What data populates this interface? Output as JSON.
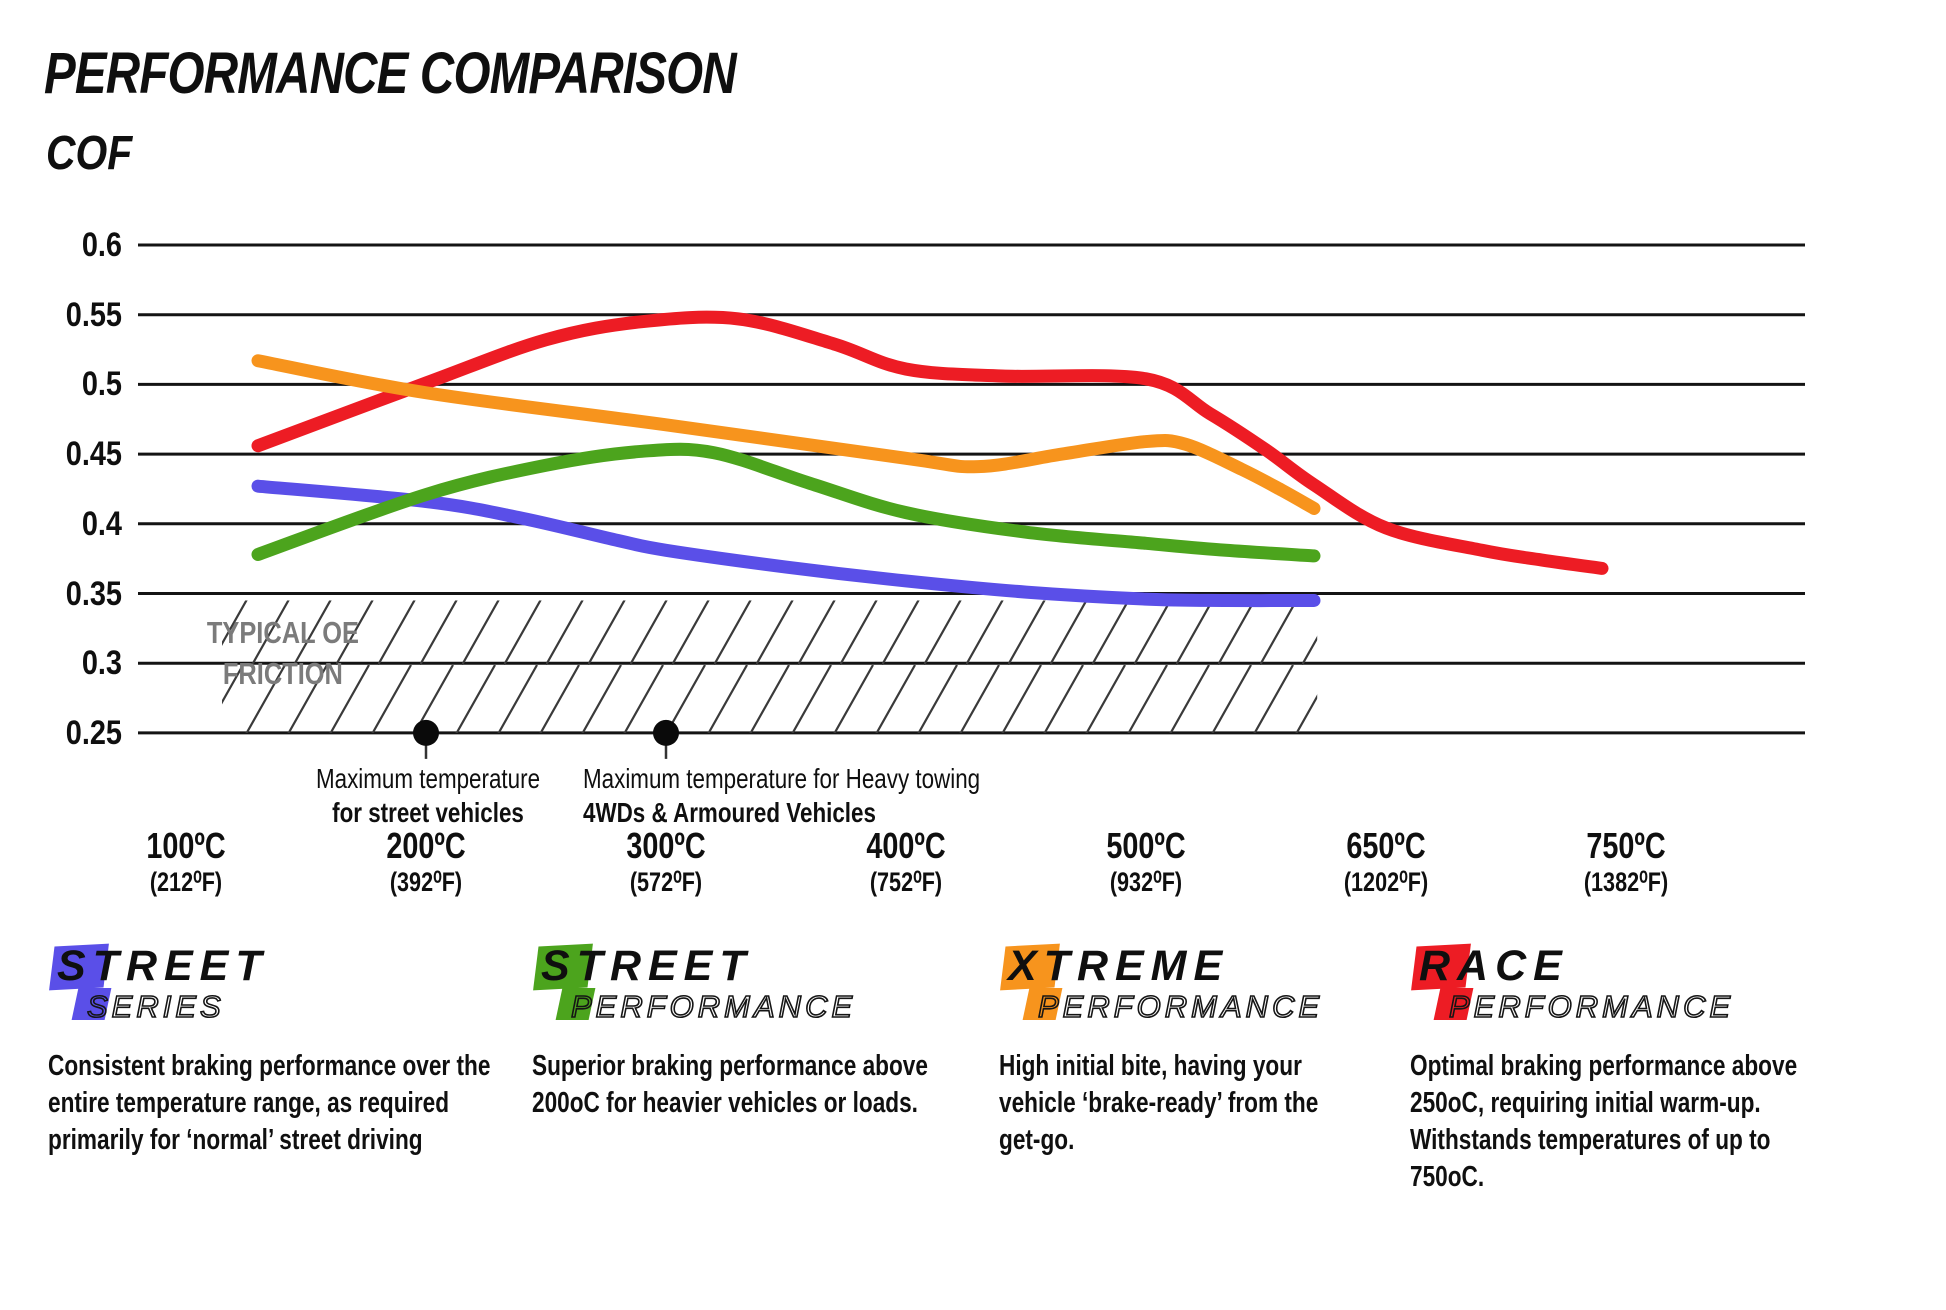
{
  "header": {
    "title": "PERFORMANCE COMPARISON",
    "y_axis_title": "COF"
  },
  "chart_data": {
    "type": "line",
    "title": "PERFORMANCE COMPARISON",
    "ylabel": "COF",
    "ylim": [
      0.25,
      0.6
    ],
    "grid": "horizontal gridlines only",
    "legend_position": "bottom",
    "y_ticks": [
      0.6,
      0.55,
      0.5,
      0.45,
      0.4,
      0.35,
      0.3,
      0.25
    ],
    "x_ticks": [
      {
        "temp": 100,
        "label_c": "100ºC",
        "label_f": "(212⁰F)"
      },
      {
        "temp": 200,
        "label_c": "200ºC",
        "label_f": "(392⁰F)"
      },
      {
        "temp": 300,
        "label_c": "300ºC",
        "label_f": "(572⁰F)"
      },
      {
        "temp": 400,
        "label_c": "400ºC",
        "label_f": "(752⁰F)"
      },
      {
        "temp": 500,
        "label_c": "500ºC",
        "label_f": "(932⁰F)"
      },
      {
        "temp": 650,
        "label_c": "650ºC",
        "label_f": "(1202⁰F)"
      },
      {
        "temp": 750,
        "label_c": "750ºC",
        "label_f": "(1382⁰F)"
      }
    ],
    "series": [
      {
        "name": "Street Series",
        "color": "#5a4fe8",
        "points": [
          [
            130,
            0.427
          ],
          [
            200,
            0.416
          ],
          [
            240,
            0.404
          ],
          [
            280,
            0.388
          ],
          [
            300,
            0.381
          ],
          [
            350,
            0.369
          ],
          [
            400,
            0.359
          ],
          [
            450,
            0.351
          ],
          [
            500,
            0.346
          ],
          [
            550,
            0.345
          ],
          [
            605,
            0.345
          ]
        ]
      },
      {
        "name": "Street Performance",
        "color": "#4ca41d",
        "points": [
          [
            130,
            0.378
          ],
          [
            200,
            0.421
          ],
          [
            250,
            0.442
          ],
          [
            290,
            0.452
          ],
          [
            320,
            0.451
          ],
          [
            360,
            0.429
          ],
          [
            400,
            0.408
          ],
          [
            450,
            0.394
          ],
          [
            500,
            0.386
          ],
          [
            550,
            0.381
          ],
          [
            605,
            0.377
          ]
        ]
      },
      {
        "name": "Race Performance",
        "color": "#ed1c24",
        "points": [
          [
            130,
            0.456
          ],
          [
            200,
            0.501
          ],
          [
            250,
            0.532
          ],
          [
            290,
            0.545
          ],
          [
            330,
            0.547
          ],
          [
            370,
            0.529
          ],
          [
            400,
            0.511
          ],
          [
            440,
            0.506
          ],
          [
            500,
            0.504
          ],
          [
            540,
            0.479
          ],
          [
            575,
            0.453
          ],
          [
            605,
            0.428
          ],
          [
            650,
            0.397
          ],
          [
            690,
            0.381
          ],
          [
            715,
            0.374
          ],
          [
            740,
            0.368
          ]
        ]
      },
      {
        "name": "Xtreme Performance",
        "color": "#f7941d",
        "points": [
          [
            130,
            0.517
          ],
          [
            200,
            0.494
          ],
          [
            300,
            0.471
          ],
          [
            400,
            0.447
          ],
          [
            430,
            0.441
          ],
          [
            465,
            0.45
          ],
          [
            500,
            0.459
          ],
          [
            525,
            0.457
          ],
          [
            560,
            0.439
          ],
          [
            585,
            0.424
          ],
          [
            605,
            0.411
          ]
        ]
      }
    ],
    "oe_band": {
      "line1": "TYPICAL OE",
      "line2": "FRICTION",
      "cof_range": [
        0.25,
        0.345
      ],
      "temp_range": [
        115,
        607
      ]
    },
    "annotations": [
      {
        "temp": 200,
        "cof": 0.25,
        "line1": "Maximum temperature",
        "line2": "for street vehicles"
      },
      {
        "temp": 300,
        "cof": 0.25,
        "line1": "Maximum temperature for Heavy towing",
        "line2": "4WDs & Armoured Vehicles"
      }
    ]
  },
  "legend": [
    {
      "brand_top": "STREET",
      "brand_bottom": "SERIES",
      "color": "#5a4fe8",
      "description": "Consistent braking performance over the entire temperature range, as required primarily for ‘normal’ street driving"
    },
    {
      "brand_top": "STREET",
      "brand_bottom": "PERFORMANCE",
      "color": "#4ca41d",
      "description": "Superior braking performance above 200oC for heavier vehicles or loads."
    },
    {
      "brand_top": "XTREME",
      "brand_bottom": "PERFORMANCE",
      "color": "#f7941d",
      "description": "High initial bite, having your vehicle ‘brake-ready’ from the get-go."
    },
    {
      "brand_top": "RACE",
      "brand_bottom": "PERFORMANCE",
      "color": "#ed1c24",
      "description": "Optimal braking performance above 250oC, requiring initial warm-up. Withstands temperatures of up to 750oC."
    }
  ]
}
